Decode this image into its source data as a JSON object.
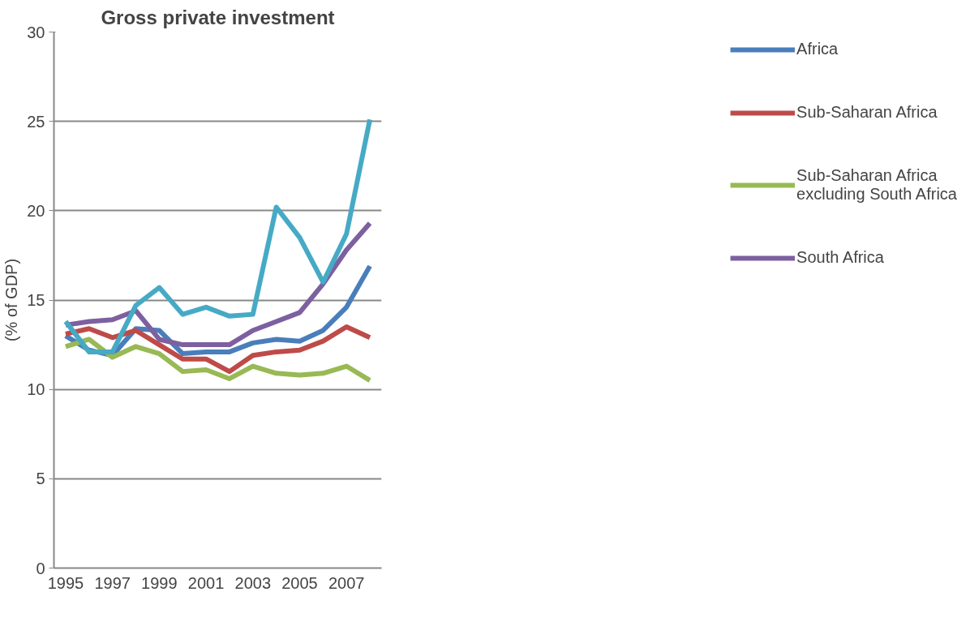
{
  "chart_data": {
    "type": "line",
    "title": "Gross private investment",
    "ylabel": "(% of GDP)",
    "categories": [
      "1995",
      null,
      "1997",
      null,
      "1999",
      null,
      "2001",
      null,
      "2003",
      null,
      "2005",
      null,
      "2007",
      null
    ],
    "series": [
      {
        "name": "Africa",
        "color": "#4a7ebb",
        "values": [
          13.0,
          12.2,
          11.9,
          13.4,
          13.3,
          12.0,
          12.1,
          12.1,
          12.6,
          12.8,
          12.7,
          13.3,
          14.6,
          16.9
        ]
      },
      {
        "name": "Sub-Saharan Africa",
        "color": "#be4b48",
        "values": [
          13.1,
          13.4,
          12.9,
          13.3,
          12.5,
          11.7,
          11.7,
          11.0,
          11.9,
          12.1,
          12.2,
          12.7,
          13.5,
          12.9
        ]
      },
      {
        "name": "Sub-Saharan Africa excluding South Africa",
        "color": "#98b954",
        "values": [
          12.4,
          12.8,
          11.8,
          12.4,
          12.0,
          11.0,
          11.1,
          10.6,
          11.3,
          10.9,
          10.8,
          10.9,
          11.3,
          10.5
        ]
      },
      {
        "name": "South Africa",
        "color": "#7d60a0",
        "values": [
          13.6,
          13.8,
          13.9,
          14.4,
          12.8,
          12.5,
          12.5,
          12.5,
          13.3,
          13.8,
          14.3,
          15.9,
          17.8,
          19.3
        ]
      },
      {
        "color": "#46aac5",
        "values": [
          13.8,
          12.1,
          12.1,
          14.7,
          15.7,
          14.2,
          14.6,
          14.1,
          14.2,
          20.2,
          18.5,
          16.0,
          18.7,
          25.1
        ]
      }
    ],
    "ylim": [
      0,
      30
    ],
    "yticks": [
      0,
      5,
      10,
      15,
      20,
      25,
      30
    ],
    "grid": "y",
    "legend": "right",
    "marker": "none",
    "line_style": "solid"
  }
}
